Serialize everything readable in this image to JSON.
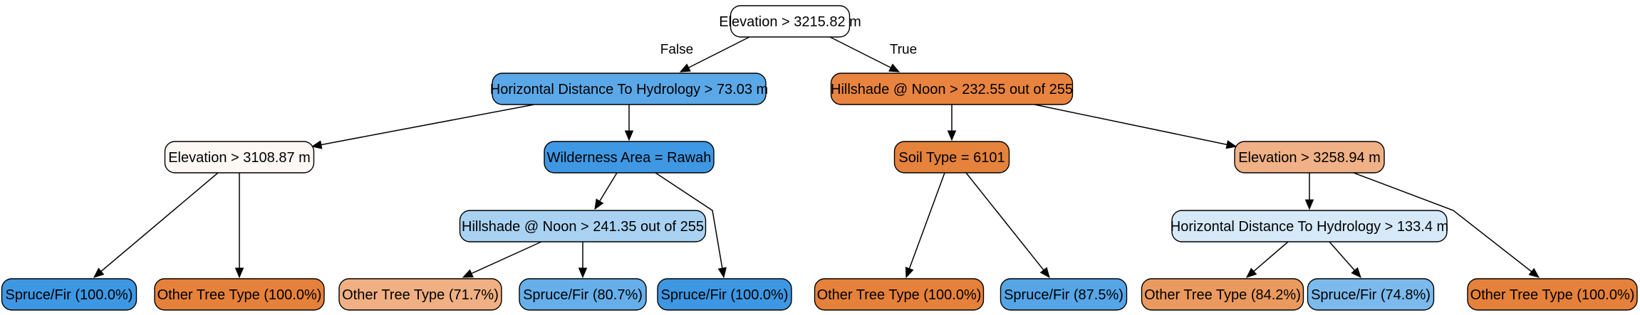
{
  "tree": {
    "nodes": [
      {
        "id": "root",
        "label": "Elevation > 3215.82 m",
        "fill": "#ffffff"
      },
      {
        "id": "n_hdh1",
        "label": "Horizontal Distance To Hydrology > 73.03 m",
        "fill": "#5ba8e8"
      },
      {
        "id": "n_hs1",
        "label": "Hillshade @ Noon > 232.55 out of 255",
        "fill": "#e8843f"
      },
      {
        "id": "n_elev2",
        "label": "Elevation > 3108.87 m",
        "fill": "#fdf8f4"
      },
      {
        "id": "n_wild",
        "label": "Wilderness Area = Rawah",
        "fill": "#3f98e3"
      },
      {
        "id": "n_soil",
        "label": "Soil Type = 6101",
        "fill": "#e5823b"
      },
      {
        "id": "n_elev3",
        "label": "Elevation > 3258.94 m",
        "fill": "#f0b186"
      },
      {
        "id": "n_hs2",
        "label": "Hillshade @ Noon > 241.35 out of 255",
        "fill": "#a9d2f2"
      },
      {
        "id": "n_hdh2",
        "label": "Horizontal Distance To Hydrology > 133.4 m",
        "fill": "#d6e9f9"
      },
      {
        "id": "l1",
        "label": "Spruce/Fir (100.0%)",
        "fill": "#3d97e3"
      },
      {
        "id": "l2",
        "label": "Other Tree Type (100.0%)",
        "fill": "#e5813a"
      },
      {
        "id": "l3",
        "label": "Other Tree Type (71.7%)",
        "fill": "#f0b083"
      },
      {
        "id": "l4",
        "label": "Spruce/Fir (80.7%)",
        "fill": "#66afea"
      },
      {
        "id": "l5",
        "label": "Spruce/Fir (100.0%)",
        "fill": "#3d97e3"
      },
      {
        "id": "l6",
        "label": "Other Tree Type (100.0%)",
        "fill": "#e5813a"
      },
      {
        "id": "l7",
        "label": "Spruce/Fir (87.5%)",
        "fill": "#55a5e7"
      },
      {
        "id": "l8",
        "label": "Other Tree Type (84.2%)",
        "fill": "#ea9a5e"
      },
      {
        "id": "l9",
        "label": "Spruce/Fir (74.8%)",
        "fill": "#7cbaed"
      },
      {
        "id": "l10",
        "label": "Other Tree Type (100.0%)",
        "fill": "#e5813a"
      }
    ],
    "edges": [
      {
        "from": "root",
        "to": "n_hdh1",
        "label": "False"
      },
      {
        "from": "root",
        "to": "n_hs1",
        "label": "True"
      },
      {
        "from": "n_hdh1",
        "to": "n_elev2",
        "label": ""
      },
      {
        "from": "n_hdh1",
        "to": "n_wild",
        "label": ""
      },
      {
        "from": "n_hs1",
        "to": "n_soil",
        "label": ""
      },
      {
        "from": "n_hs1",
        "to": "n_elev3",
        "label": ""
      },
      {
        "from": "n_elev2",
        "to": "l1",
        "label": ""
      },
      {
        "from": "n_elev2",
        "to": "l2",
        "label": ""
      },
      {
        "from": "n_wild",
        "to": "n_hs2",
        "label": ""
      },
      {
        "from": "n_wild",
        "to": "l5",
        "label": ""
      },
      {
        "from": "n_hs2",
        "to": "l3",
        "label": ""
      },
      {
        "from": "n_hs2",
        "to": "l4",
        "label": ""
      },
      {
        "from": "n_soil",
        "to": "l6",
        "label": ""
      },
      {
        "from": "n_soil",
        "to": "l7",
        "label": ""
      },
      {
        "from": "n_elev3",
        "to": "n_hdh2",
        "label": ""
      },
      {
        "from": "n_elev3",
        "to": "l10",
        "label": ""
      },
      {
        "from": "n_hdh2",
        "to": "l8",
        "label": ""
      },
      {
        "from": "n_hdh2",
        "to": "l9",
        "label": ""
      }
    ]
  }
}
